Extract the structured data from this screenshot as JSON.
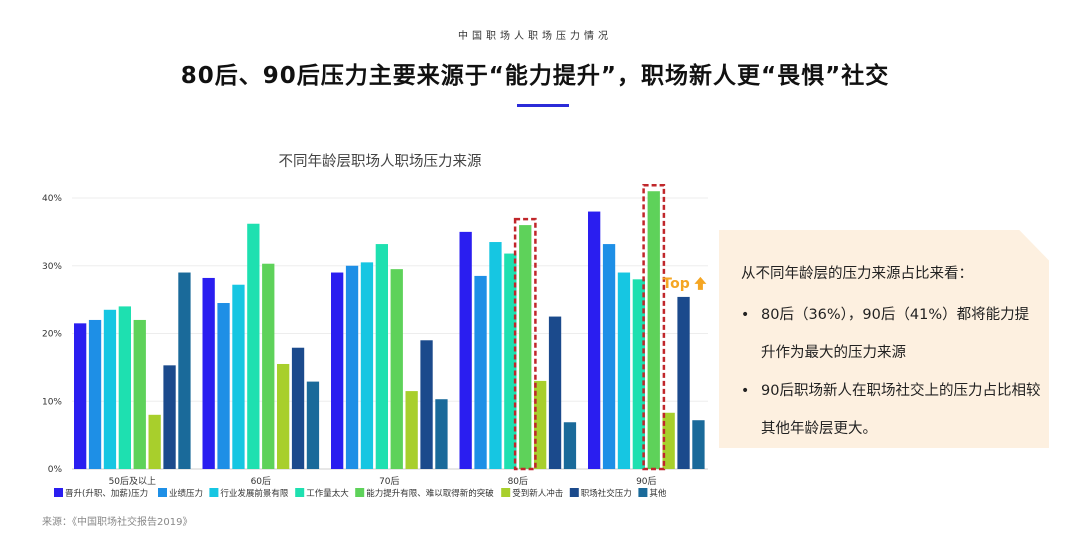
{
  "page": {
    "kicker": "中国职场人职场压力情况",
    "headline": "80后、90后压力主要来源于“能力提升”，职场新人更“畏惧”社交",
    "source": "来源：《中国职场社交报告2019》"
  },
  "note": {
    "heading": "从不同年龄层的压力来源占比来看：",
    "bullets": [
      "80后（36%），90后（41%）都将能力提升作为最大的压力来源",
      "90后职场新人在职场社交上的压力占比相较其他年龄层更大。"
    ]
  },
  "chart_data": {
    "type": "bar",
    "title": "不同年龄层职场人职场压力来源",
    "categories": [
      "50后及以上",
      "60后",
      "70后",
      "80后",
      "90后"
    ],
    "ylim": [
      0,
      40
    ],
    "yticks": [
      "0%",
      "10%",
      "20%",
      "30%",
      "40%"
    ],
    "grid": true,
    "legend_position": "bottom",
    "series": [
      {
        "name": "晋升(升职、加薪)压力",
        "color": "#2a1ef0",
        "values": [
          21.5,
          28.2,
          29,
          35,
          38
        ]
      },
      {
        "name": "业绩压力",
        "color": "#1e8fe6",
        "values": [
          22,
          24.5,
          30,
          28.5,
          33.2
        ]
      },
      {
        "name": "行业发展前景有限",
        "color": "#16c6e2",
        "values": [
          23.5,
          27.2,
          30.5,
          33.5,
          29
        ]
      },
      {
        "name": "工作量太大",
        "color": "#1ee0b0",
        "values": [
          24,
          36.2,
          33.2,
          31.8,
          28
        ]
      },
      {
        "name": "能力提升有限、难以取得新的突破",
        "color": "#5ed25a",
        "values": [
          22,
          30.3,
          29.5,
          36,
          41
        ]
      },
      {
        "name": "受到新人冲击",
        "color": "#a8cf2c",
        "values": [
          8,
          15.5,
          11.5,
          13,
          8.3
        ]
      },
      {
        "name": "职场社交压力",
        "color": "#1b4a8c",
        "values": [
          15.3,
          17.9,
          19,
          22.5,
          25.4
        ]
      },
      {
        "name": "其他",
        "color": "#1a6a9a",
        "values": [
          29,
          12.9,
          10.3,
          6.9,
          7.2
        ]
      }
    ],
    "highlight": [
      {
        "category": "80后",
        "series": "能力提升有限、难以取得新的突破"
      },
      {
        "category": "90后",
        "series": "能力提升有限、难以取得新的突破"
      }
    ],
    "annotations": [
      {
        "text": "Top",
        "category": "90后",
        "series": "职场社交压力",
        "color": "#f5a623"
      }
    ]
  }
}
